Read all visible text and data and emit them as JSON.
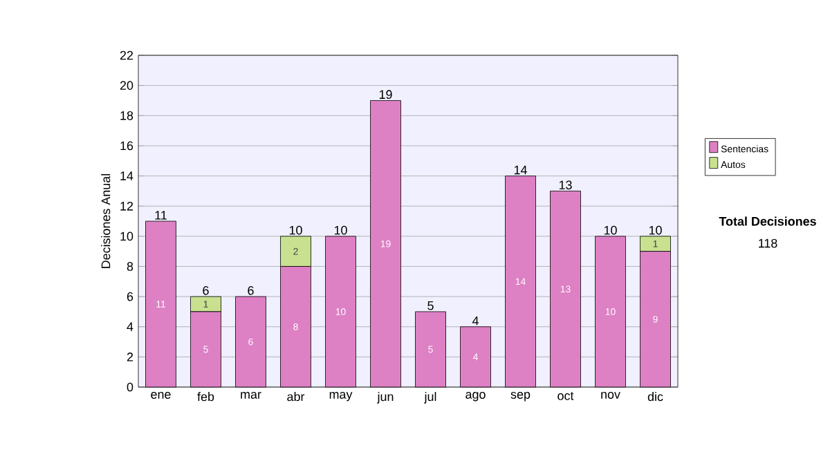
{
  "chart_data": {
    "type": "bar",
    "stacked": true,
    "ylabel": "Decisiones Anual",
    "categories": [
      "ene",
      "feb",
      "mar",
      "abr",
      "may",
      "jun",
      "jul",
      "ago",
      "sep",
      "oct",
      "nov",
      "dic"
    ],
    "series": [
      {
        "name": "Sentencias",
        "color": "#dd80c4",
        "values": [
          11,
          5,
          6,
          8,
          10,
          19,
          5,
          4,
          14,
          13,
          10,
          9
        ]
      },
      {
        "name": "Autos",
        "color": "#c8e090",
        "values": [
          null,
          1,
          null,
          2,
          null,
          null,
          null,
          null,
          null,
          null,
          null,
          1
        ]
      }
    ],
    "totals": [
      "11",
      "6",
      "6",
      "10",
      "10",
      "19",
      "5",
      "4",
      "14",
      "13",
      "10",
      "10"
    ],
    "data_labels": true,
    "ylim": [
      0,
      22
    ],
    "yticks": [
      0,
      2,
      4,
      6,
      8,
      10,
      12,
      14,
      16,
      18,
      20,
      22
    ],
    "grid": "y",
    "legend": "right",
    "annotations": [
      "Total Decisiones",
      "118"
    ]
  }
}
